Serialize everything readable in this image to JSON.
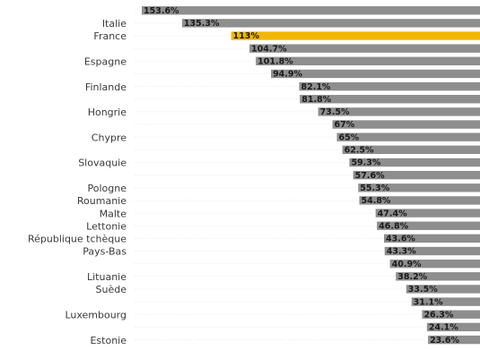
{
  "chart_data": {
    "type": "bar",
    "orientation": "horizontal",
    "x_origin": "right",
    "highlight_color": "#f2b705",
    "bar_color": "#8e8e8e",
    "values": [
      153.6,
      135.3,
      113,
      104.7,
      101.8,
      94.9,
      82.1,
      81.8,
      73.5,
      67,
      65,
      62.5,
      59.3,
      57.6,
      55.3,
      54.8,
      47.4,
      46.8,
      43.6,
      43.3,
      40.9,
      38.2,
      33.5,
      31.1,
      26.3,
      24.1,
      23.6
    ],
    "value_labels": [
      "153.6%",
      "135.3%",
      "113%",
      "104.7%",
      "101.8%",
      "94.9%",
      "82.1%",
      "81.8%",
      "73.5%",
      "67%",
      "65%",
      "62.5%",
      "59.3%",
      "57.6%",
      "55.3%",
      "54.8%",
      "47.4%",
      "46.8%",
      "43.6%",
      "43.3%",
      "40.9%",
      "38.2%",
      "33.5%",
      "31.1%",
      "26.3%",
      "24.1%",
      "23.6%"
    ],
    "categories": [
      "",
      "Italie",
      "France",
      "",
      "Espagne",
      "",
      "Finlande",
      "",
      "Hongrie",
      "",
      "Chypre",
      "",
      "Slovaquie",
      "",
      "Pologne",
      "Roumanie",
      "Malte",
      "Lettonie",
      "République tchèque",
      "Pays-Bas",
      "",
      "Lituanie",
      "Suède",
      "",
      "Luxembourg",
      "",
      "Estonie"
    ],
    "highlight_index": 2
  }
}
